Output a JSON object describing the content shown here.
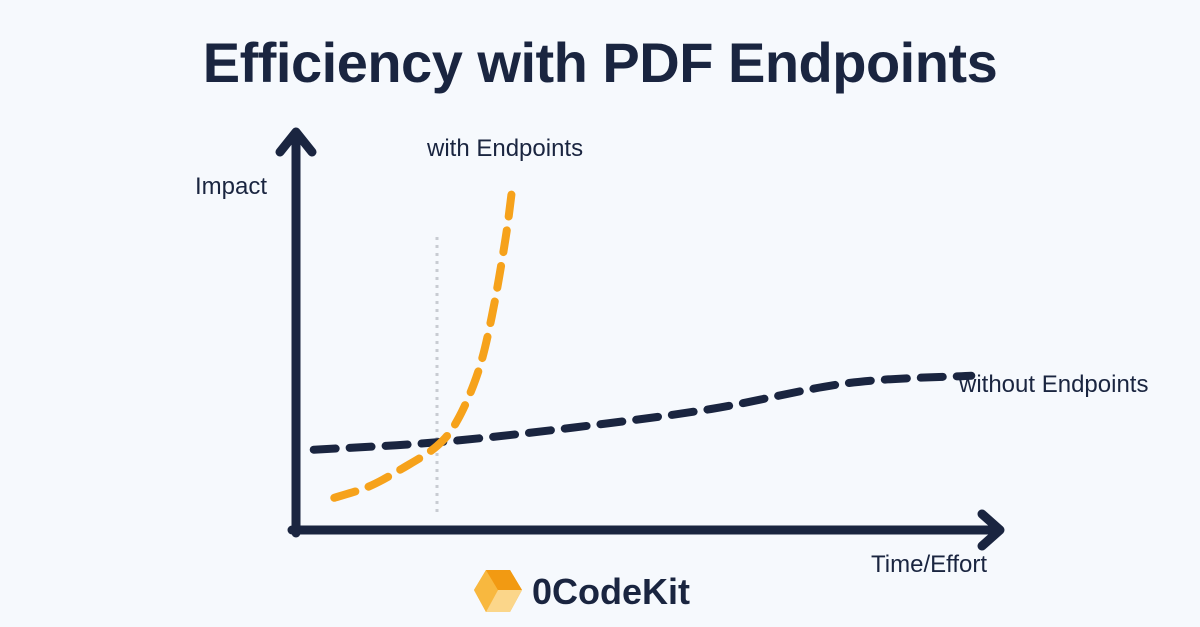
{
  "title": "Efficiency with PDF Endpoints",
  "brand": {
    "name": "0CodeKit",
    "icon": "cube-logo-icon",
    "color": "#f6a21b"
  },
  "colors": {
    "background": "#f6f9fd",
    "axis": "#1a2540",
    "with_endpoints": "#f6a21b",
    "without_endpoints": "#1a2540",
    "marker_line": "#c8ccd2"
  },
  "chart_data": {
    "type": "line",
    "xlabel": "Time/Effort",
    "ylabel": "Impact",
    "grid": false,
    "axis_ticks": false,
    "xlim": [
      0,
      10
    ],
    "ylim": [
      0,
      10
    ],
    "marker_x": 2.0,
    "series": [
      {
        "name": "with Endpoints",
        "style": "dashed",
        "x": [
          0.5,
          1.0,
          1.5,
          2.0,
          2.3,
          2.6,
          2.8,
          3.0,
          3.1
        ],
        "y": [
          0.6,
          0.9,
          1.4,
          2.0,
          2.7,
          4.0,
          5.5,
          7.6,
          9.0
        ]
      },
      {
        "name": "without Endpoints",
        "style": "dashed",
        "x": [
          0.2,
          2.0,
          4.0,
          6.0,
          8.0,
          9.8
        ],
        "y": [
          1.9,
          2.1,
          2.5,
          3.0,
          3.7,
          3.9
        ]
      }
    ]
  }
}
